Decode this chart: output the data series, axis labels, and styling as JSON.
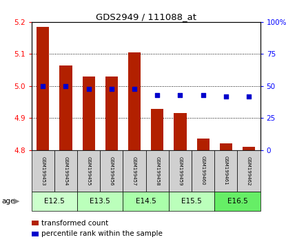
{
  "title": "GDS2949 / 111088_at",
  "samples": [
    "GSM199453",
    "GSM199454",
    "GSM199455",
    "GSM199456",
    "GSM199457",
    "GSM199458",
    "GSM199459",
    "GSM199460",
    "GSM199461",
    "GSM199462"
  ],
  "transformed_counts": [
    5.185,
    5.065,
    5.03,
    5.03,
    5.105,
    4.928,
    4.915,
    4.835,
    4.82,
    4.81
  ],
  "percentile_ranks": [
    50,
    50,
    48,
    48,
    48,
    43,
    43,
    43,
    42,
    42
  ],
  "ymin": 4.8,
  "ymax": 5.2,
  "yticks": [
    4.8,
    4.9,
    5.0,
    5.1,
    5.2
  ],
  "right_yticks": [
    0,
    25,
    50,
    75,
    100
  ],
  "right_ylabels": [
    "0",
    "25",
    "50",
    "75",
    "100%"
  ],
  "bar_color": "#B22000",
  "percentile_color": "#0000CC",
  "bar_width": 0.55,
  "bar_base": 4.8,
  "age_colors": [
    "#CCFFCC",
    "#BBFFBB",
    "#AAFFAA",
    "#BBFFBB",
    "#66EE66"
  ],
  "age_labels": [
    "E12.5",
    "E13.5",
    "E14.5",
    "E15.5",
    "E16.5"
  ],
  "grid_color": "#000000",
  "sample_box_color": "#D0D0D0",
  "legend_label_count": "transformed count",
  "legend_label_pct": "percentile rank within the sample"
}
